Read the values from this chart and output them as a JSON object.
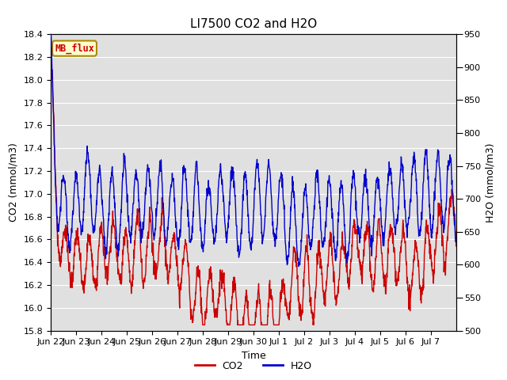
{
  "title": "LI7500 CO2 and H2O",
  "xlabel": "Time",
  "ylabel_left": "CO2 (mmol/m3)",
  "ylabel_right": "H2O (mmol/m3)",
  "co2_ylim": [
    15.8,
    18.4
  ],
  "h2o_ylim": [
    500,
    950
  ],
  "co2_yticks": [
    15.8,
    16.0,
    16.2,
    16.4,
    16.6,
    16.8,
    17.0,
    17.2,
    17.4,
    17.6,
    17.8,
    18.0,
    18.2,
    18.4
  ],
  "h2o_yticks": [
    500,
    550,
    600,
    650,
    700,
    750,
    800,
    850,
    900,
    950
  ],
  "xtick_labels": [
    "Jun 22",
    "Jun 23",
    "Jun 24",
    "Jun 25",
    "Jun 26",
    "Jun 27",
    "Jun 28",
    "Jun 29",
    "Jun 30",
    "Jul 1",
    "Jul 2",
    "Jul 3",
    "Jul 4",
    "Jul 5",
    "Jul 6",
    "Jul 7"
  ],
  "annotation_text": "MB_flux",
  "annotation_color": "#cc0000",
  "annotation_bg": "#ffffcc",
  "annotation_edge": "#aa8800",
  "bg_color": "#e0e0e0",
  "co2_color": "#cc0000",
  "h2o_color": "#0000cc",
  "legend_co2": "CO2",
  "legend_h2o": "H2O",
  "grid_color": "#ffffff",
  "title_fontsize": 11,
  "label_fontsize": 9,
  "tick_fontsize": 8,
  "linewidth": 1.0,
  "n_days": 16,
  "n_points_per_day": 96,
  "fig_width": 6.4,
  "fig_height": 4.8,
  "dpi": 100
}
